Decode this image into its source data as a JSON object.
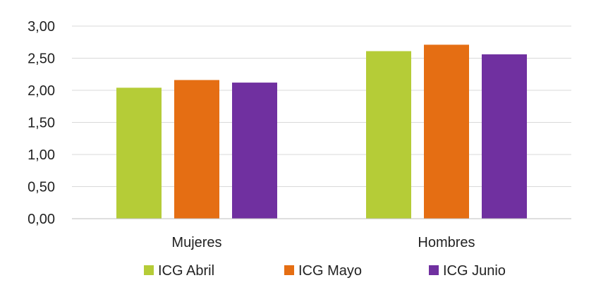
{
  "chart_data": {
    "type": "bar",
    "title": "",
    "xlabel": "",
    "ylabel": "",
    "categories": [
      "Mujeres",
      "Hombres"
    ],
    "series": [
      {
        "name": "ICG Abril",
        "color": "#b5cc37",
        "values": [
          2.04,
          2.61
        ]
      },
      {
        "name": "ICG Mayo",
        "color": "#e56e13",
        "values": [
          2.16,
          2.71
        ]
      },
      {
        "name": "ICG Junio",
        "color": "#7030a0",
        "values": [
          2.12,
          2.56
        ]
      }
    ],
    "ylim": [
      0,
      3
    ],
    "yticks": [
      "0,00",
      "0,50",
      "1,00",
      "1,50",
      "2,00",
      "2,50",
      "3,00"
    ],
    "ytick_values": [
      0,
      0.5,
      1,
      1.5,
      2,
      2.5,
      3
    ],
    "grid": true,
    "legend_position": "bottom"
  }
}
